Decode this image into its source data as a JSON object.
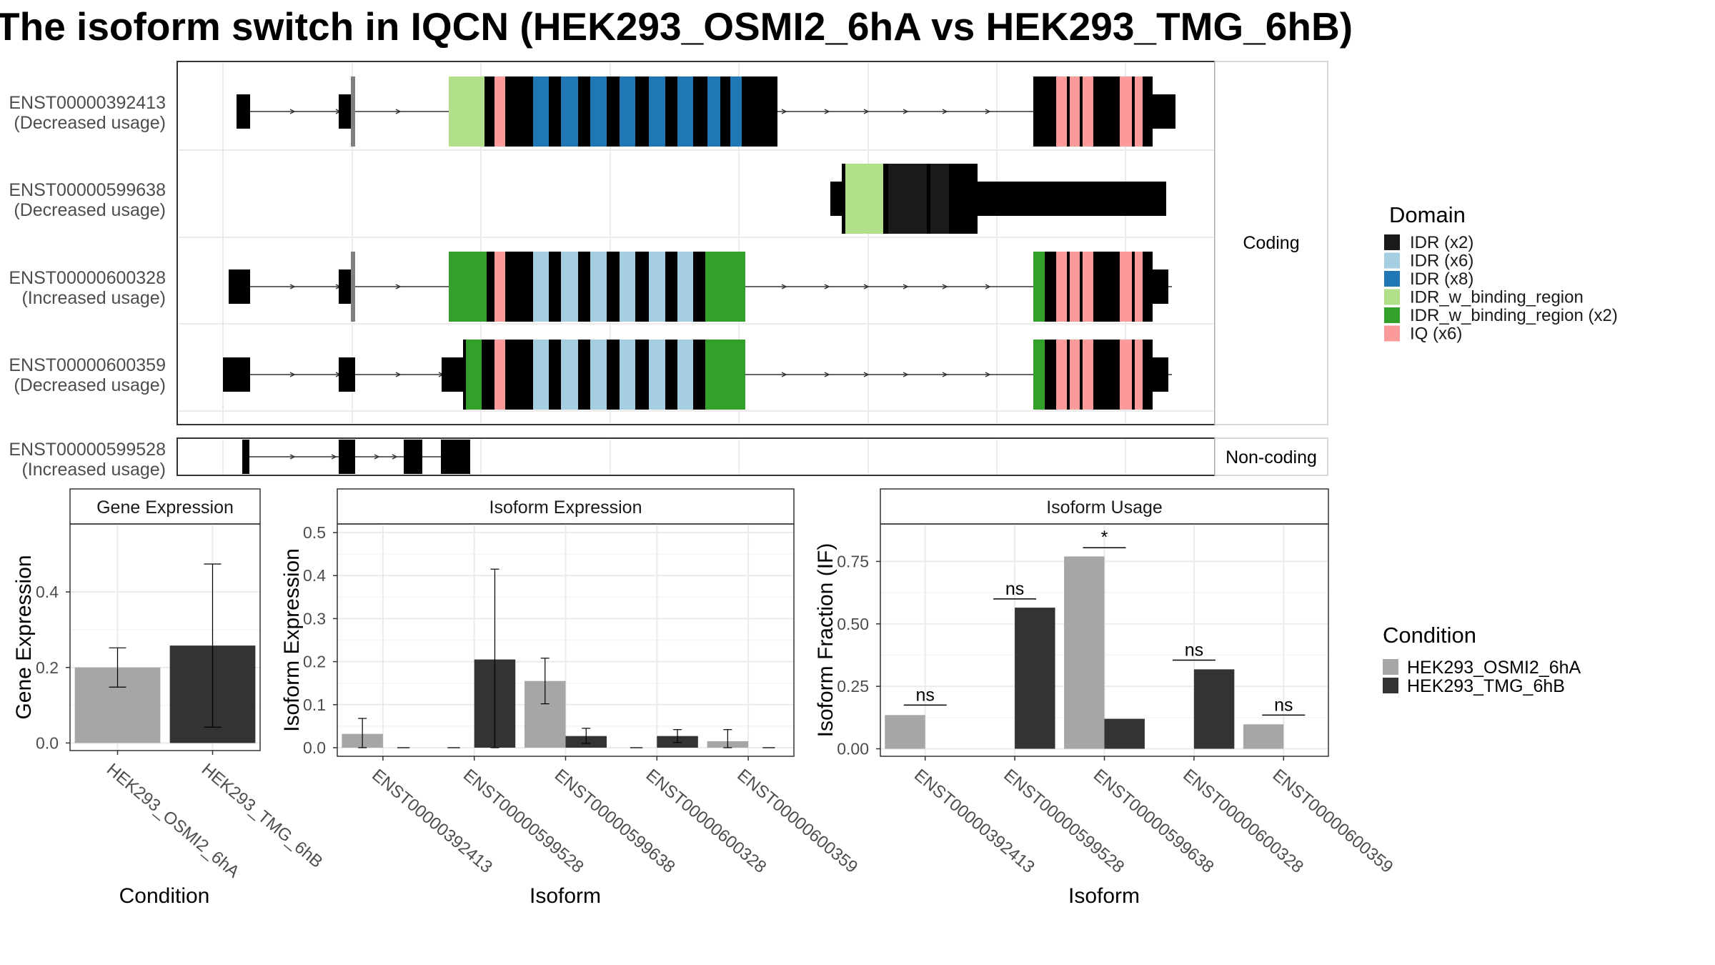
{
  "title": "The isoform switch in IQCN (HEK293_OSMI2_6hA vs HEK293_TMG_6hB)",
  "colors": {
    "IDR (x2)": "#1a1a1a",
    "IDR (x6)": "#a6cee3",
    "IDR (x8)": "#1f78b4",
    "IDR_w_binding_region": "#b2df8a",
    "IDR_w_binding_region (x2)": "#33a02c",
    "IQ (x6)": "#fb9a99",
    "exon": "#7f7f7f",
    "HEK293_OSMI2_6hA": "#a6a6a6",
    "HEK293_TMG_6hB": "#333333"
  },
  "structure": {
    "facets": [
      "Coding",
      "Non-coding"
    ],
    "transcripts": [
      {
        "id": "ENST00000392413",
        "usage": "(Decreased usage)"
      },
      {
        "id": "ENST00000599638",
        "usage": "(Decreased usage)"
      },
      {
        "id": "ENST00000600328",
        "usage": "(Increased usage)"
      },
      {
        "id": "ENST00000600359",
        "usage": "(Decreased usage)"
      },
      {
        "id": "ENST00000599528",
        "usage": "(Increased usage)"
      }
    ],
    "legend_title": "Domain",
    "legend_items": [
      "IDR (x2)",
      "IDR (x6)",
      "IDR (x8)",
      "IDR_w_binding_region",
      "IDR_w_binding_region (x2)",
      "IQ (x6)"
    ]
  },
  "chart_data": [
    {
      "type": "bar",
      "title": "Gene Expression",
      "xlabel": "Condition",
      "ylabel": "Gene Expression",
      "categories": [
        "HEK293_OSMI2_6hA",
        "HEK293_TMG_6hB"
      ],
      "values": [
        0.2,
        0.258
      ],
      "errors": [
        [
          0.148,
          0.252
        ],
        [
          0.042,
          0.474
        ]
      ],
      "ylim": [
        -0.02,
        0.58
      ],
      "yticks": [
        0.0,
        0.2,
        0.4
      ],
      "ytick_labels": [
        "0.0",
        "0.2",
        "0.4"
      ]
    },
    {
      "type": "bar",
      "title": "Isoform Expression",
      "xlabel": "Isoform",
      "ylabel": "Isoform Expression",
      "categories": [
        "ENST00000392413",
        "ENST00000599528",
        "ENST00000599638",
        "ENST00000600328",
        "ENST00000600359"
      ],
      "series": [
        {
          "name": "HEK293_OSMI2_6hA",
          "values": [
            0.032,
            0.0,
            0.155,
            0.0,
            0.015
          ],
          "errors": [
            [
              0.0,
              0.068
            ],
            [
              0.0,
              0.0
            ],
            [
              0.102,
              0.208
            ],
            [
              0.0,
              0.0
            ],
            [
              0.0,
              0.042
            ]
          ]
        },
        {
          "name": "HEK293_TMG_6hB",
          "values": [
            0.0,
            0.205,
            0.027,
            0.027,
            0.0
          ],
          "errors": [
            [
              0.0,
              0.0
            ],
            [
              0.0,
              0.415
            ],
            [
              0.01,
              0.045
            ],
            [
              0.012,
              0.042
            ],
            [
              0.0,
              0.0
            ]
          ]
        }
      ],
      "ylim": [
        -0.02,
        0.52
      ],
      "yticks": [
        0.0,
        0.1,
        0.2,
        0.3,
        0.4,
        0.5
      ],
      "ytick_labels": [
        "0.0",
        "0.1",
        "0.2",
        "0.3",
        "0.4",
        "0.5"
      ]
    },
    {
      "type": "bar",
      "title": "Isoform Usage",
      "xlabel": "Isoform",
      "ylabel": "Isoform Fraction (IF)",
      "categories": [
        "ENST00000392413",
        "ENST00000599528",
        "ENST00000599638",
        "ENST00000600328",
        "ENST00000600359"
      ],
      "series": [
        {
          "name": "HEK293_OSMI2_6hA",
          "values": [
            0.135,
            0.0,
            0.77,
            0.0,
            0.098
          ]
        },
        {
          "name": "HEK293_TMG_6hB",
          "values": [
            0.0,
            0.565,
            0.12,
            0.318,
            0.0
          ]
        }
      ],
      "significance": [
        "ns",
        "ns",
        "*",
        "ns",
        "ns"
      ],
      "sig_levels": [
        0.175,
        0.6,
        0.805,
        0.355,
        0.135
      ],
      "ylim": [
        -0.03,
        0.9
      ],
      "yticks": [
        0.0,
        0.25,
        0.5,
        0.75
      ],
      "ytick_labels": [
        "0.00",
        "0.25",
        "0.50",
        "0.75"
      ]
    }
  ],
  "condition_legend": {
    "title": "Condition",
    "items": [
      "HEK293_OSMI2_6hA",
      "HEK293_TMG_6hB"
    ]
  }
}
